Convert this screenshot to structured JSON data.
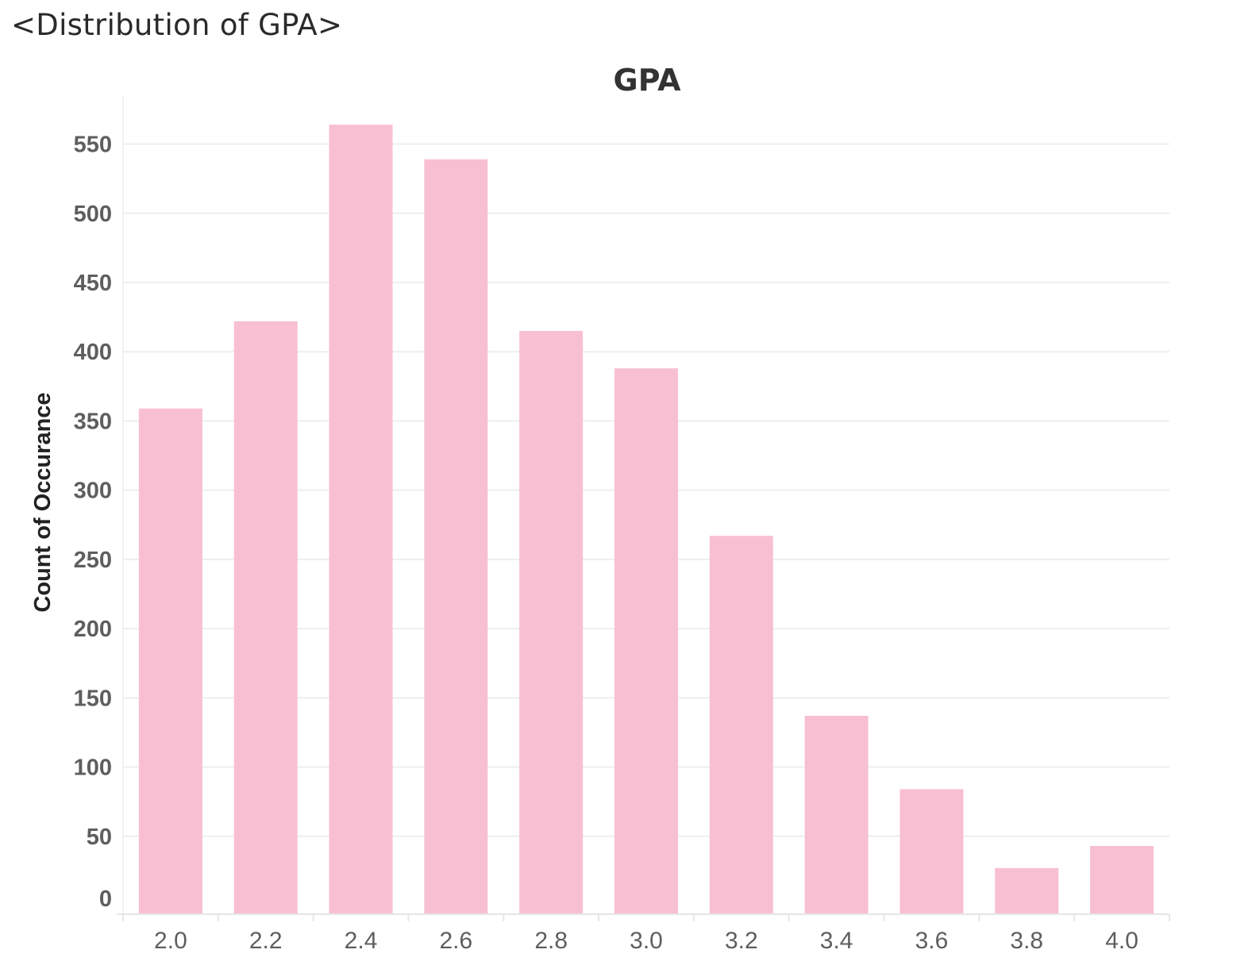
{
  "page": {
    "title": "<Distribution of GPA>"
  },
  "chart_data": {
    "type": "bar",
    "title": "GPA",
    "xlabel": "",
    "ylabel": "Count of Occurance",
    "categories": [
      "2.0",
      "2.2",
      "2.4",
      "2.6",
      "2.8",
      "3.0",
      "3.2",
      "3.4",
      "3.6",
      "3.8",
      "4.0"
    ],
    "values": [
      359,
      422,
      564,
      539,
      415,
      388,
      267,
      137,
      84,
      27,
      43
    ],
    "y_ticks": [
      "0",
      "50",
      "100",
      "150",
      "200",
      "250",
      "300",
      "350",
      "400",
      "450",
      "500",
      "550"
    ],
    "ylim": [
      0,
      575
    ],
    "grid": true,
    "bar_color": "#f8bfd3",
    "grid_color": "#eeeeee",
    "axis_color": "#e6e6e6"
  }
}
